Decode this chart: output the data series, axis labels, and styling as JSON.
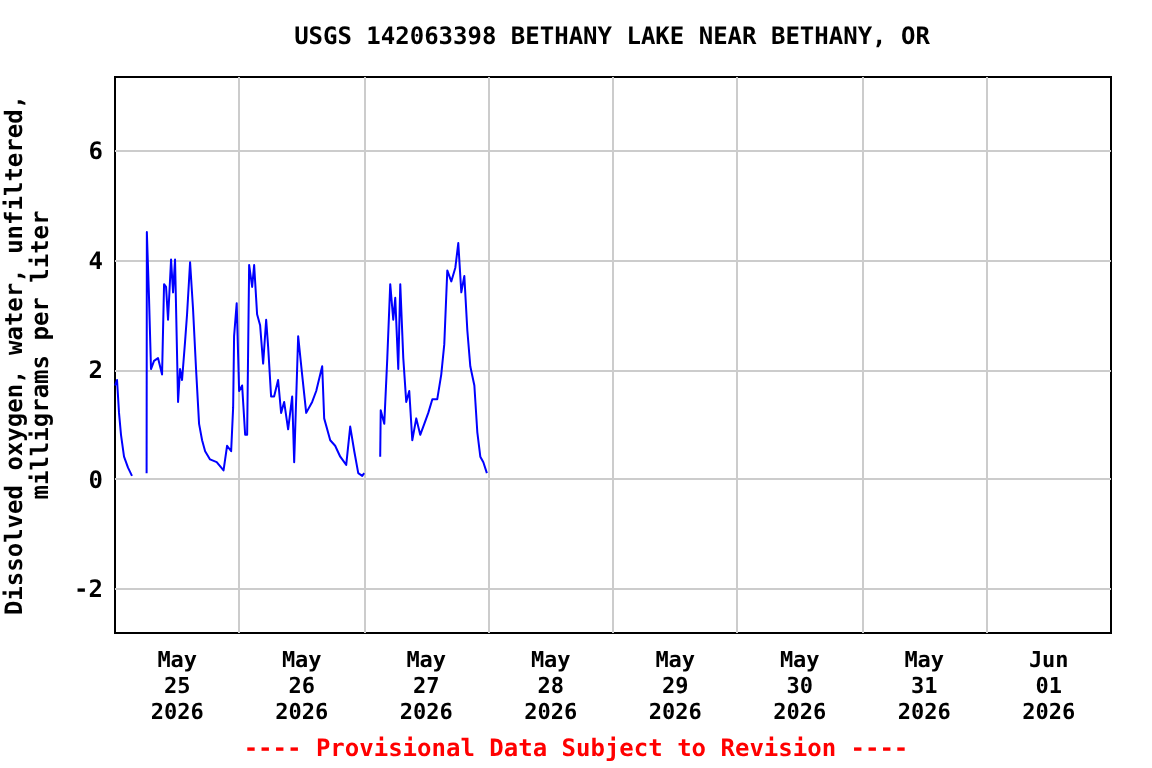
{
  "chart_data": {
    "type": "line",
    "title": "USGS 142063398 BETHANY LAKE NEAR BETHANY, OR",
    "ylabel": "Dissolved oxygen, water, unfiltered,\nmilligrams per liter",
    "annotations": [
      "---- Provisional Data Subject to Revision ----"
    ],
    "x": [
      "2026-05-25T00:12",
      "2026-05-25T00:35",
      "2026-05-25T00:58",
      "2026-05-25T01:21",
      "2026-05-25T01:56",
      "2026-05-25T02:42",
      "2026-05-25T03:28",
      "2026-05-25T04:30",
      "2026-05-25T06:17",
      "2026-05-25T06:20",
      "2026-05-25T06:45",
      "2026-05-25T07:08",
      "2026-05-25T07:43",
      "2026-05-25T08:29",
      "2026-05-25T09:16",
      "2026-05-25T09:39",
      "2026-05-25T10:02",
      "2026-05-25T10:25",
      "2026-05-25T11:00",
      "2026-05-25T11:23",
      "2026-05-25T11:46",
      "2026-05-25T12:21",
      "2026-05-25T12:44",
      "2026-05-25T13:07",
      "2026-05-25T13:42",
      "2026-05-25T14:05",
      "2026-05-25T14:40",
      "2026-05-25T15:14",
      "2026-05-25T15:49",
      "2026-05-25T16:24",
      "2026-05-25T16:59",
      "2026-05-25T17:34",
      "2026-05-25T18:31",
      "2026-05-25T19:48",
      "2026-05-25T21:07",
      "2026-05-25T21:48",
      "2026-05-25T22:35",
      "2026-05-25T22:58",
      "2026-05-25T23:09",
      "2026-05-25T23:39",
      "2026-05-26T00:07",
      "2026-05-26T00:42",
      "2026-05-26T01:17",
      "2026-05-26T01:40",
      "2026-05-26T02:03",
      "2026-05-26T02:38",
      "2026-05-26T03:01",
      "2026-05-26T03:35",
      "2026-05-26T04:10",
      "2026-05-26T04:45",
      "2026-05-26T05:20",
      "2026-05-26T05:43",
      "2026-05-26T06:17",
      "2026-05-26T06:52",
      "2026-05-26T07:38",
      "2026-05-26T08:13",
      "2026-05-26T08:48",
      "2026-05-26T09:34",
      "2026-05-26T10:21",
      "2026-05-26T10:44",
      "2026-05-26T11:30",
      "2026-05-26T12:16",
      "2026-05-26T13:03",
      "2026-05-26T14:12",
      "2026-05-26T14:59",
      "2026-05-26T16:08",
      "2026-05-26T16:31",
      "2026-05-26T17:41",
      "2026-05-26T18:38",
      "2026-05-26T19:37",
      "2026-05-26T20:46",
      "2026-05-26T21:32",
      "2026-05-26T22:19",
      "2026-05-26T23:05",
      "2026-05-26T23:51",
      "2026-05-27T00:14",
      "2026-05-27T01:30",
      "2026-05-27T03:19",
      "2026-05-27T03:25",
      "2026-05-27T04:06",
      "2026-05-27T04:41",
      "2026-05-27T05:15",
      "2026-05-27T05:50",
      "2026-05-27T06:13",
      "2026-05-27T06:48",
      "2026-05-27T07:11",
      "2026-05-27T07:46",
      "2026-05-27T08:20",
      "2026-05-27T08:55",
      "2026-05-27T09:30",
      "2026-05-27T10:16",
      "2026-05-27T11:02",
      "2026-05-27T11:49",
      "2026-05-27T12:35",
      "2026-05-27T13:22",
      "2026-05-27T14:19",
      "2026-05-27T15:05",
      "2026-05-27T15:40",
      "2026-05-27T16:15",
      "2026-05-27T17:01",
      "2026-05-27T17:48",
      "2026-05-27T18:22",
      "2026-05-27T18:57",
      "2026-05-27T19:32",
      "2026-05-27T20:07",
      "2026-05-27T20:41",
      "2026-05-27T21:28",
      "2026-05-27T22:02",
      "2026-05-27T22:37",
      "2026-05-27T23:12",
      "2026-05-27T23:53"
    ],
    "series": [
      {
        "color": "#0000ff",
        "values": [
          1.7,
          1.8,
          1.2,
          0.8,
          0.4,
          0.2,
          0.05,
          null,
          0.1,
          4.5,
          3.3,
          2.0,
          2.15,
          2.2,
          1.9,
          3.55,
          3.5,
          2.9,
          4.0,
          3.4,
          4.0,
          1.4,
          2.0,
          1.8,
          2.5,
          3.0,
          3.95,
          3.1,
          2.0,
          1.0,
          0.7,
          0.5,
          0.35,
          0.3,
          0.15,
          0.6,
          0.5,
          1.3,
          2.6,
          3.2,
          1.6,
          1.7,
          0.8,
          0.8,
          3.9,
          3.5,
          3.9,
          3.0,
          2.8,
          2.1,
          2.9,
          2.4,
          1.5,
          1.5,
          1.8,
          1.2,
          1.4,
          0.9,
          1.5,
          0.3,
          2.6,
          1.9,
          1.2,
          1.4,
          1.6,
          2.05,
          1.1,
          0.7,
          0.6,
          0.4,
          0.25,
          0.95,
          0.5,
          0.1,
          0.05,
          0.1,
          null,
          0.4,
          1.25,
          1.0,
          2.2,
          3.55,
          2.9,
          3.3,
          2.0,
          3.55,
          2.2,
          1.4,
          1.6,
          0.7,
          1.1,
          0.8,
          1.0,
          1.2,
          1.45,
          1.45,
          1.9,
          2.45,
          3.8,
          3.6,
          3.85,
          4.3,
          3.4,
          3.7,
          2.7,
          2.05,
          1.7,
          0.85,
          0.4,
          0.3,
          0.1
        ]
      }
    ],
    "xlim": [
      "2026-05-25",
      "2026-06-02"
    ],
    "xticks": [
      {
        "value": "2026-05-25T12:00",
        "label": "May 25 2026"
      },
      {
        "value": "2026-05-26T12:00",
        "label": "May 26 2026"
      },
      {
        "value": "2026-05-27T12:00",
        "label": "May 27 2026"
      },
      {
        "value": "2026-05-28T12:00",
        "label": "May 28 2026"
      },
      {
        "value": "2026-05-29T12:00",
        "label": "May 29 2026"
      },
      {
        "value": "2026-05-30T12:00",
        "label": "May 30 2026"
      },
      {
        "value": "2026-05-31T12:00",
        "label": "May 31 2026"
      },
      {
        "value": "2026-06-01T12:00",
        "label": "Jun 01 2026"
      },
      {
        "value": "2026-05-26",
        "label": null
      },
      {
        "value": "2026-05-27",
        "label": null
      },
      {
        "value": "2026-05-28",
        "label": null
      },
      {
        "value": "2026-05-29",
        "label": null
      },
      {
        "value": "2026-05-30",
        "label": null
      },
      {
        "value": "2026-05-31",
        "label": null
      },
      {
        "value": "2026-06-01",
        "label": null
      }
    ],
    "ylim": [
      -2.8,
      7.35
    ],
    "yticks": [
      -2,
      0,
      2,
      4,
      6
    ],
    "grid": true
  }
}
